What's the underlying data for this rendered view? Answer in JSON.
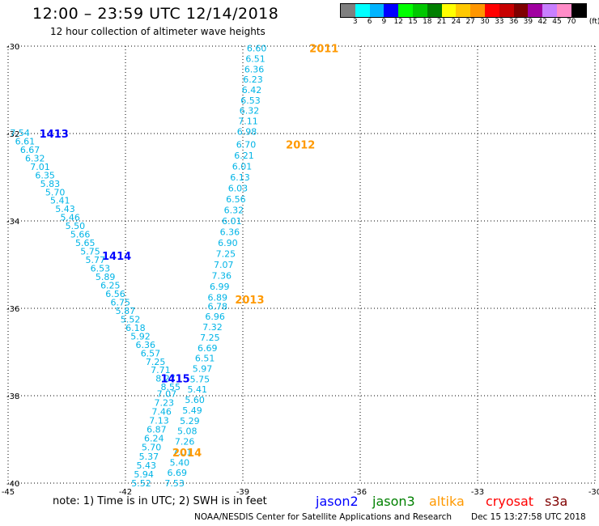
{
  "header": {
    "title": "12:00 – 23:59 UTC 12/14/2018",
    "subtitle": "12 hour collection of altimeter wave heights"
  },
  "colorbar": {
    "colors": [
      "#7f7f7f",
      "#00ffff",
      "#00b4ff",
      "#0000ff",
      "#00ff00",
      "#00c800",
      "#007f00",
      "#ffff00",
      "#ffc800",
      "#ff9600",
      "#ff0000",
      "#c80000",
      "#7f0000",
      "#a000a0",
      "#c87fff",
      "#ff8cc8",
      "#000000"
    ],
    "labels": [
      "3",
      "6",
      "9",
      "12",
      "15",
      "18",
      "21",
      "24",
      "27",
      "30",
      "33",
      "36",
      "39",
      "42",
      "45",
      "70",
      "(ft)"
    ]
  },
  "axes": {
    "x_ticks": [
      "-45",
      "-42",
      "-39",
      "-36",
      "-33",
      "-30"
    ],
    "y_ticks": [
      "-30",
      "-32",
      "-34",
      "-36",
      "-38",
      "-40"
    ],
    "xlim": [
      -45,
      -30
    ],
    "ylim": [
      -40,
      -30
    ]
  },
  "orbits": [
    {
      "label": "2011",
      "satellite": "altika",
      "lon": -37.3,
      "lat": -30.05
    },
    {
      "label": "2012",
      "satellite": "altika",
      "lon": -37.9,
      "lat": -32.25
    },
    {
      "label": "2013",
      "satellite": "altika",
      "lon": -39.2,
      "lat": -35.8
    },
    {
      "label": "2014",
      "satellite": "altika",
      "lon": -40.8,
      "lat": -39.3
    },
    {
      "label": "1413",
      "satellite": "jason2",
      "lon": -44.2,
      "lat": -32.0
    },
    {
      "label": "1414",
      "satellite": "jason2",
      "lon": -42.6,
      "lat": -34.8
    },
    {
      "label": "1415",
      "satellite": "jason2",
      "lon": -41.1,
      "lat": -37.6
    }
  ],
  "tracks": [
    {
      "id": "track-2011-2012",
      "start": [
        -38.9,
        -30.05
      ],
      "end": [
        -39.15,
        -31.95
      ],
      "values": [
        "6.60",
        "6.51",
        "6.36",
        "6.23",
        "6.42",
        "6.53",
        "6.32",
        "7.11",
        "6.98"
      ]
    },
    {
      "id": "track-2012-2013",
      "start": [
        -39.17,
        -32.25
      ],
      "end": [
        -39.9,
        -35.75
      ],
      "values": [
        "6.70",
        "6.21",
        "6.01",
        "6.13",
        "6.03",
        "6.56",
        "6.32",
        "6.01",
        "6.36",
        "6.90",
        "7.25",
        "7.07",
        "7.36",
        "6.99",
        "6.89"
      ]
    },
    {
      "id": "track-2013-2014",
      "start": [
        -39.9,
        -35.95
      ],
      "end": [
        -41.0,
        -40.0
      ],
      "values": [
        "6.78",
        "6.96",
        "7.32",
        "7.25",
        "6.69",
        "6.51",
        "5.97",
        "5.75",
        "5.41",
        "5.60",
        "5.49",
        "5.29",
        "5.08",
        "7.26",
        "7.01",
        "5.40",
        "6.69",
        "7.53"
      ]
    },
    {
      "id": "track-1413-1415",
      "start": [
        -44.95,
        -31.98
      ],
      "end": [
        -41.1,
        -37.8
      ],
      "values": [
        "7.54",
        "6.61",
        "6.67",
        "6.32",
        "7.01",
        "6.35",
        "5.83",
        "5.70",
        "5.41",
        "5.43",
        "5.46",
        "5.50",
        "5.66",
        "5.65",
        "5.75",
        "5.77",
        "6.53",
        "5.89",
        "6.25",
        "6.56",
        "6.75",
        "5.87",
        "5.52",
        "6.18",
        "5.92",
        "6.36",
        "6.57",
        "7.25",
        "7.71",
        "8.27",
        "8.55"
      ]
    },
    {
      "id": "track-1415-south",
      "start": [
        -41.2,
        -37.95
      ],
      "end": [
        -41.85,
        -40.0
      ],
      "values": [
        "7.07",
        "7.23",
        "7.46",
        "7.13",
        "6.87",
        "6.24",
        "5.70",
        "5.37",
        "5.43",
        "5.94",
        "5.52"
      ]
    }
  ],
  "legend": [
    {
      "name": "jason2",
      "color": "#0000ff"
    },
    {
      "name": "jason3",
      "color": "#008000"
    },
    {
      "name": "altika",
      "color": "#ff9900"
    },
    {
      "name": "cryosat",
      "color": "#ff0000"
    },
    {
      "name": "s3a",
      "color": "#800000"
    }
  ],
  "footer": {
    "note": "note: 1) Time is in UTC; 2) SWH is in feet",
    "credit": "NOAA/NESDIS Center for Satellite Applications and Research",
    "timestamp": "Dec 15 13:27:58 UTC 2018"
  }
}
